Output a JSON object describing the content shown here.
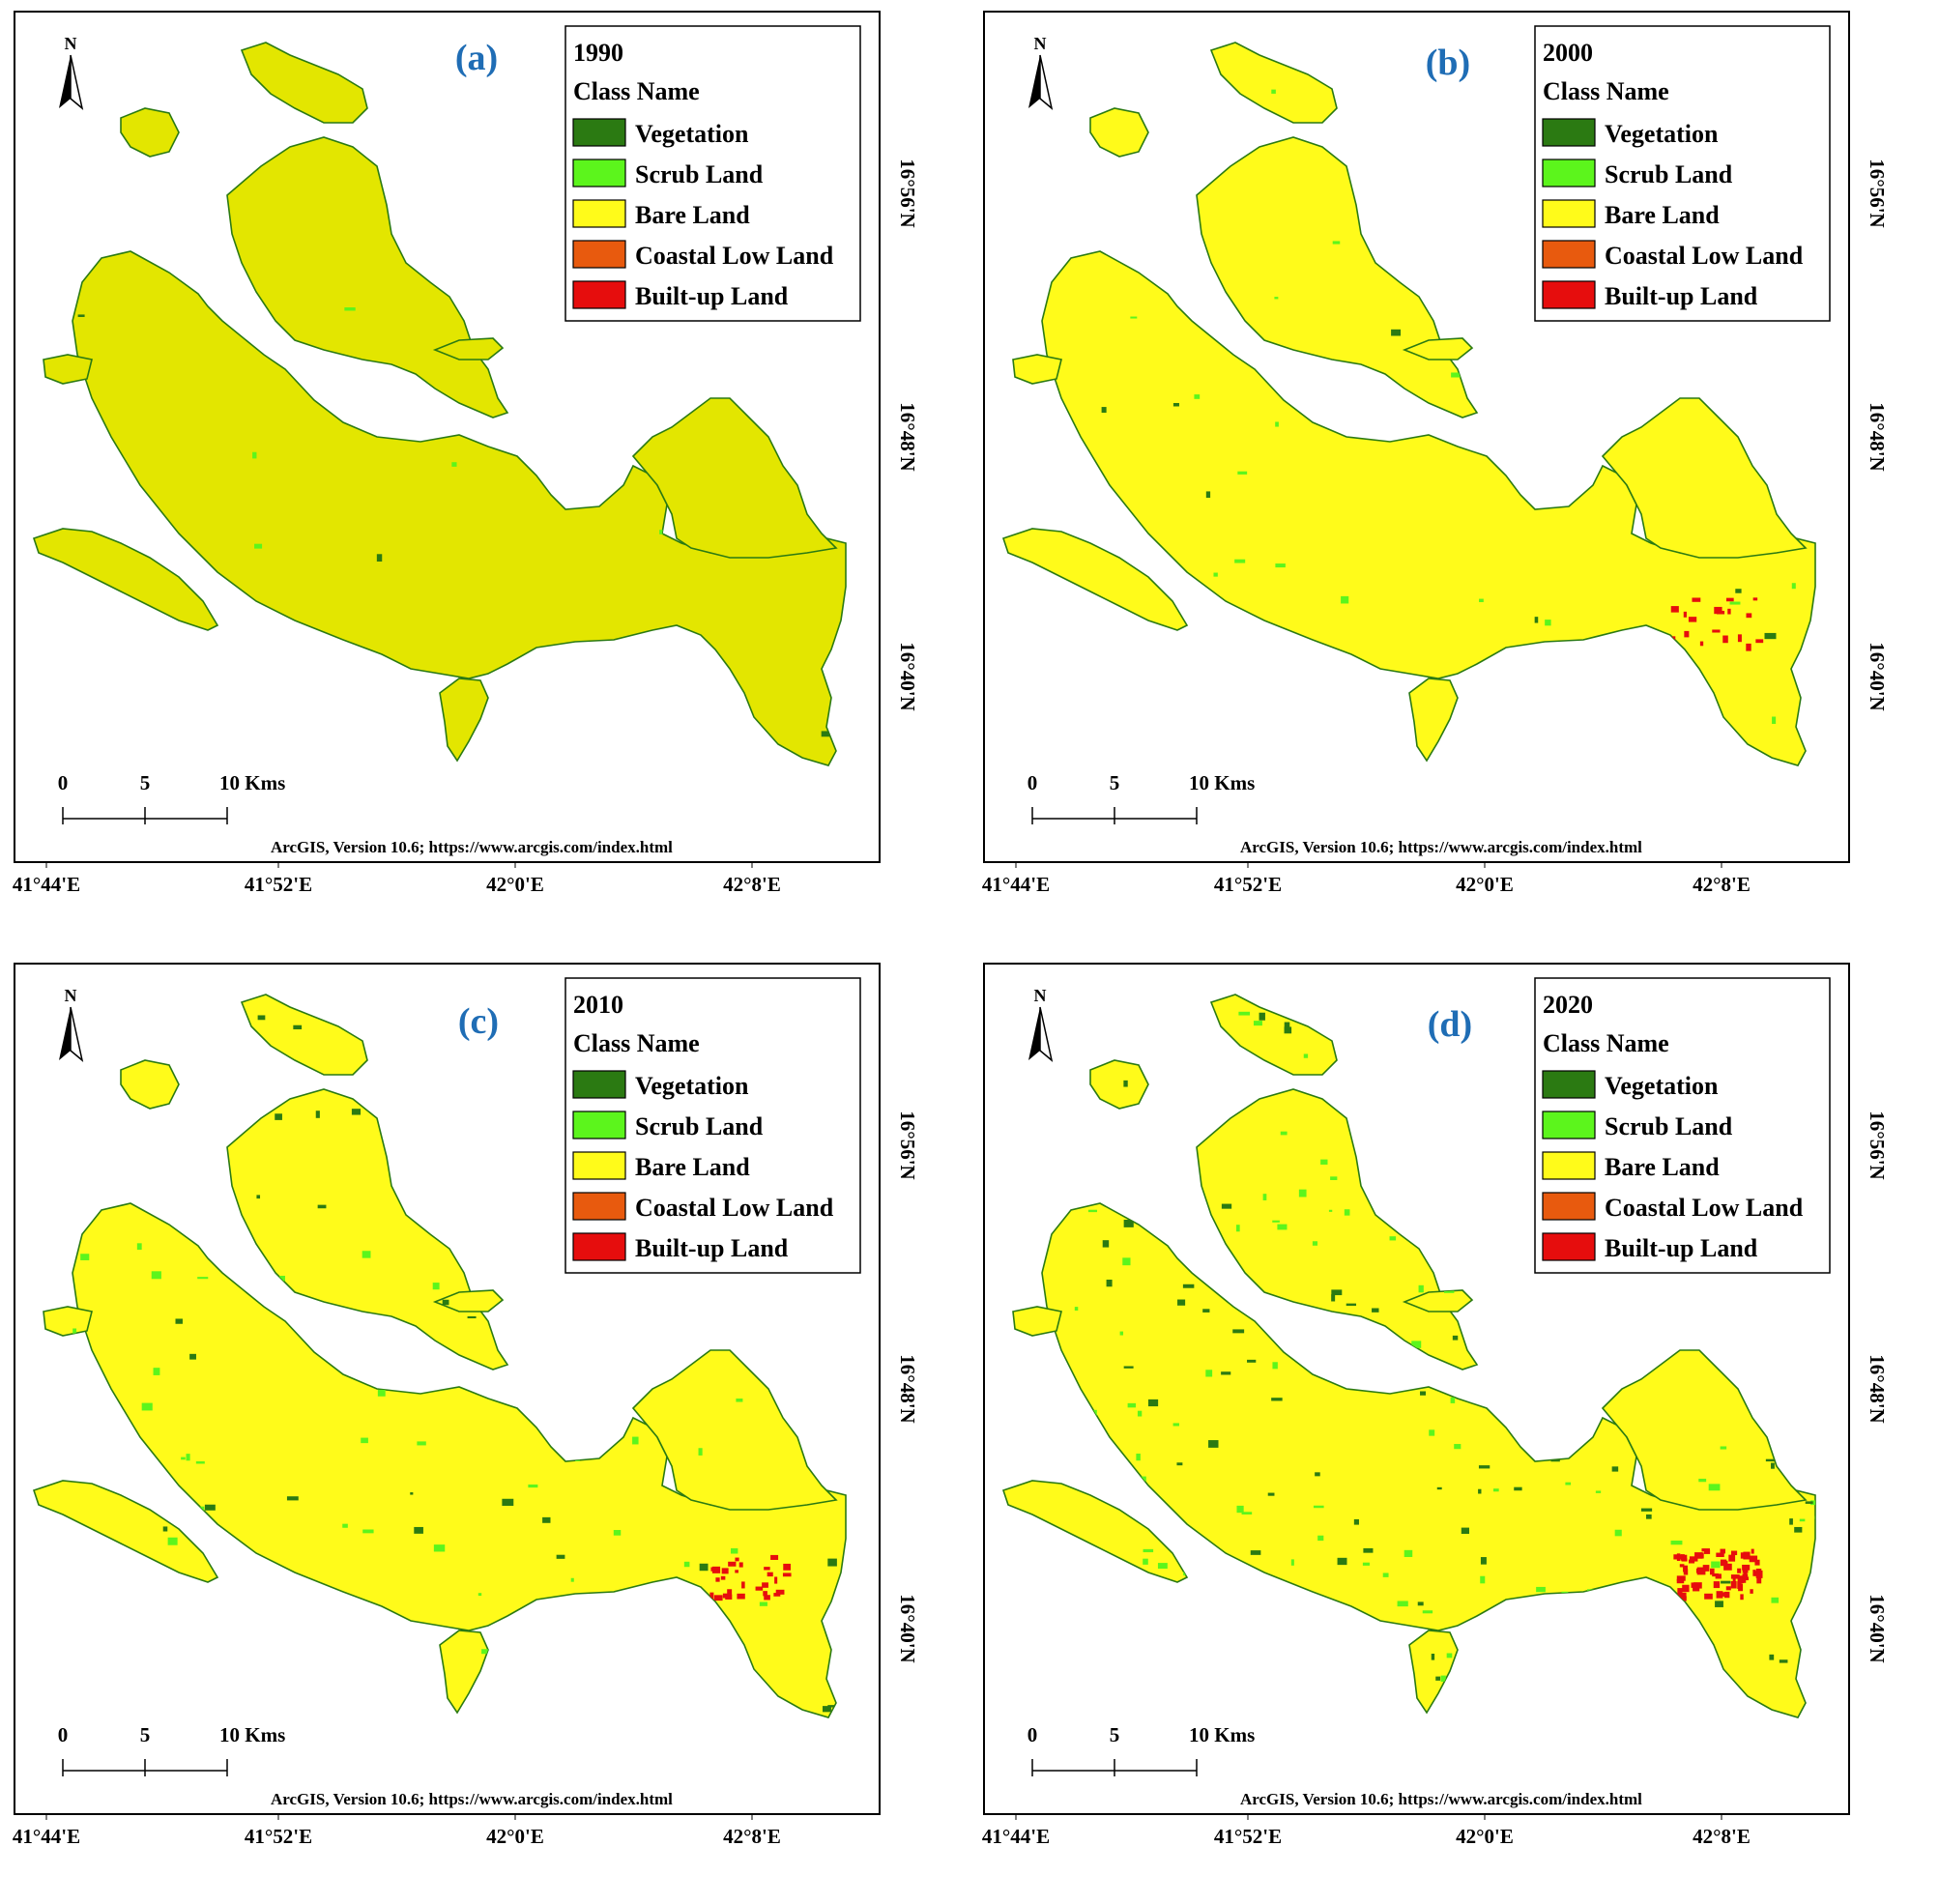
{
  "colors": {
    "vegetation": "#2b7a12",
    "scrub_land": "#5cf51c",
    "bare_land": "#fffb1a",
    "coastal_low_land": "#e85a0e",
    "built_up_land": "#e60d0d",
    "land_1990": "#e3e600",
    "panel_letter": "#1f6db5"
  },
  "legend_header": "Class Name",
  "legend_classes": [
    {
      "key": "vegetation",
      "label": "Vegetation"
    },
    {
      "key": "scrub_land",
      "label": "Scrub Land"
    },
    {
      "key": "bare_land",
      "label": "Bare Land"
    },
    {
      "key": "coastal_low_land",
      "label": "Coastal Low Land"
    },
    {
      "key": "built_up_land",
      "label": "Built-up Land"
    }
  ],
  "north_label": "N",
  "scale_bar": {
    "ticks": [
      "0",
      "5",
      "10 Kms"
    ]
  },
  "attribution": "ArcGIS, Version 10.6; https://www.arcgis.com/index.html",
  "longitude_ticks": [
    "41°44'E",
    "41°52'E",
    "42°0'E",
    "42°8'E"
  ],
  "latitude_ticks": [
    "16°56'N",
    "16°48'N",
    "16°40'N"
  ],
  "panels": [
    {
      "letter": "(a)",
      "year": "1990"
    },
    {
      "letter": "(b)",
      "year": "2000"
    },
    {
      "letter": "(c)",
      "year": "2010"
    },
    {
      "letter": "(d)",
      "year": "2020"
    }
  ]
}
